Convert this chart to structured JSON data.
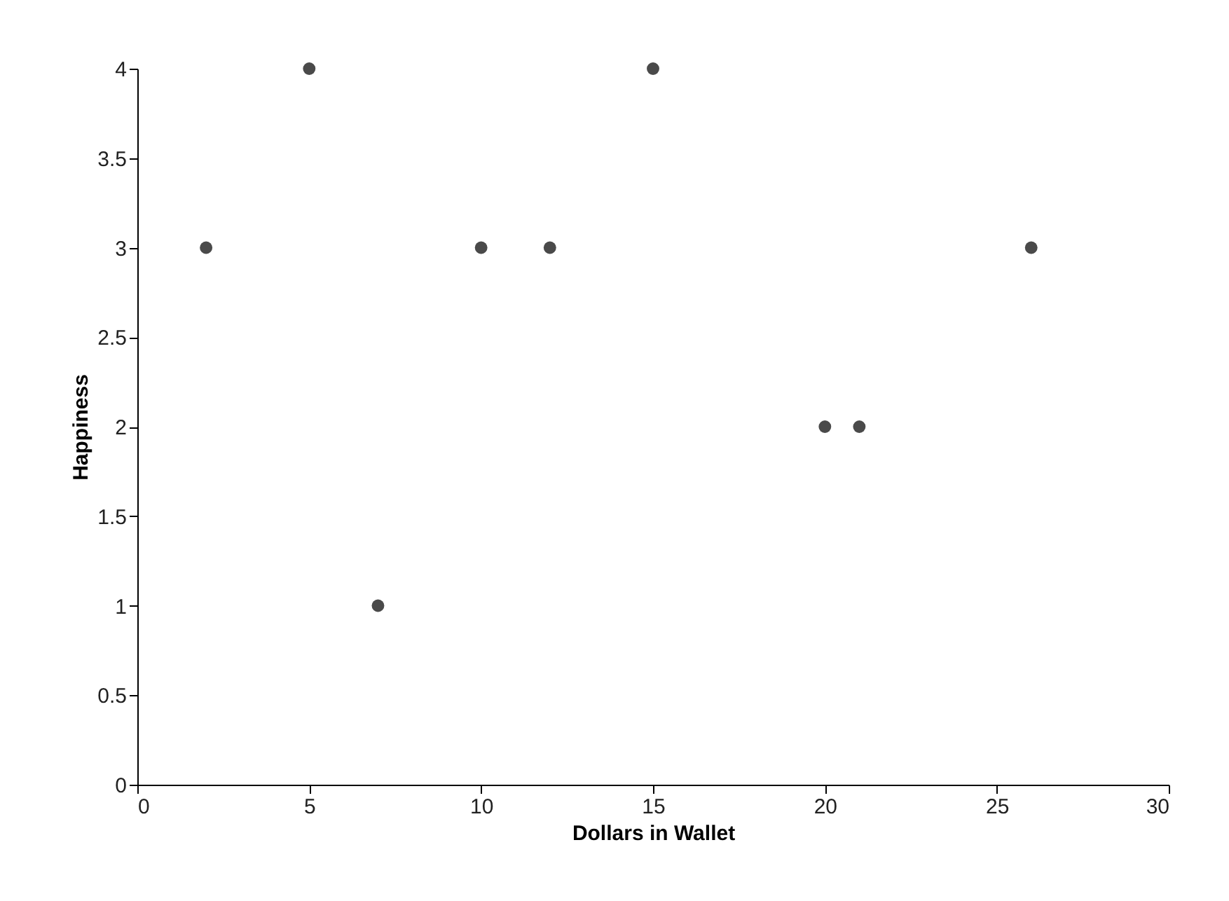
{
  "chart_data": {
    "type": "scatter",
    "xlabel": "Dollars in Wallet",
    "ylabel": "Happiness",
    "x": [
      2,
      5,
      7,
      10,
      12,
      15,
      20,
      21,
      26
    ],
    "series": [
      {
        "color": "#4a4a4a",
        "values": [
          3,
          4,
          1,
          3,
          3,
          4,
          2,
          2,
          3
        ]
      }
    ],
    "xlim": [
      0,
      30
    ],
    "xticks": [
      0,
      5,
      10,
      15,
      20,
      25,
      30
    ],
    "ylim": [
      0,
      4
    ],
    "yticks": [
      0,
      0.5,
      1,
      1.5,
      2,
      2.5,
      3,
      3.5,
      4
    ],
    "grid": false,
    "marker": "circle"
  }
}
